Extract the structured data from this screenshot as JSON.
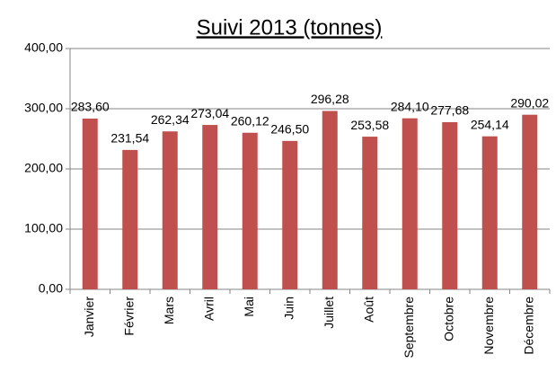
{
  "chart_data": {
    "type": "bar",
    "title": "Suivi 2013 (tonnes)",
    "categories": [
      "Janvier",
      "Février",
      "Mars",
      "Avril",
      "Mai",
      "Juin",
      "Juillet",
      "Août",
      "Septembre",
      "Octobre",
      "Novembre",
      "Décembre"
    ],
    "values": [
      283.6,
      231.54,
      262.34,
      273.04,
      260.12,
      246.5,
      296.28,
      253.58,
      284.1,
      277.68,
      254.14,
      290.02
    ],
    "value_labels": [
      "283,60",
      "231,54",
      "262,34",
      "273,04",
      "260,12",
      "246,50",
      "296,28",
      "253,58",
      "284,10",
      "277,68",
      "254,14",
      "290,02"
    ],
    "color": "#c0504d",
    "ylim": [
      0,
      400
    ],
    "yticks": [
      {
        "value": 0,
        "label": "0,00"
      },
      {
        "value": 100,
        "label": "100,00"
      },
      {
        "value": 200,
        "label": "200,00"
      },
      {
        "value": 300,
        "label": "300,00"
      },
      {
        "value": 400,
        "label": "400,00"
      }
    ],
    "grid": true
  }
}
